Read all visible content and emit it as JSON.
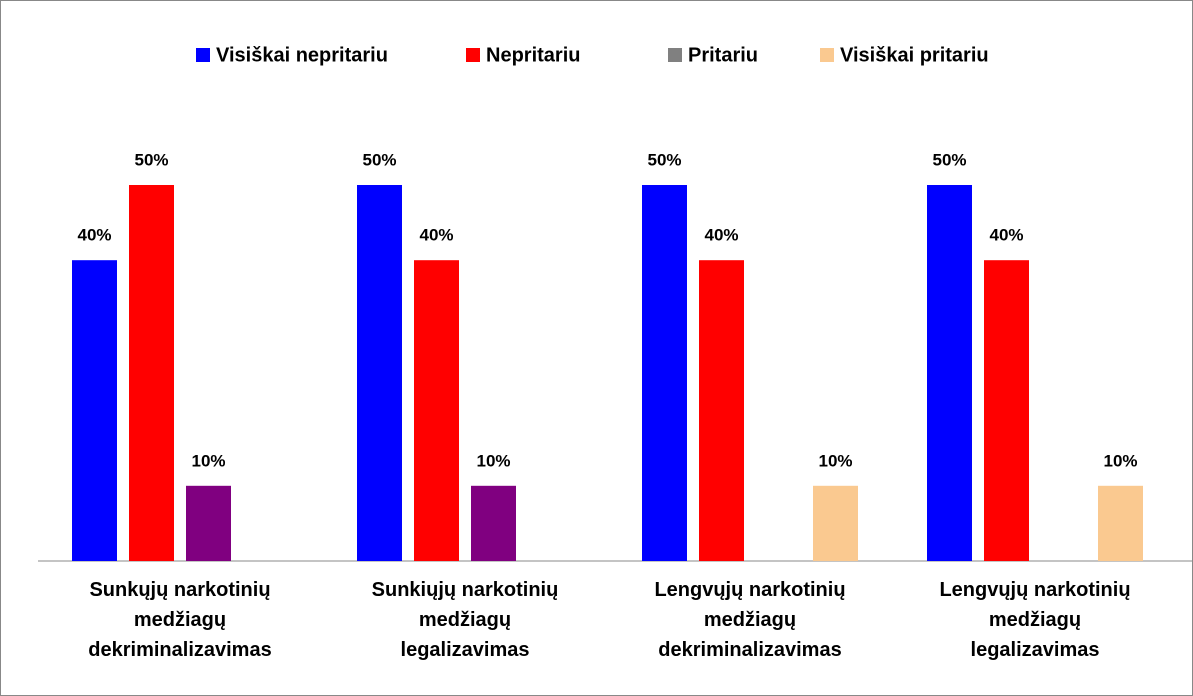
{
  "chart_data": {
    "type": "bar",
    "categories": [
      "Sunkųjų narkotinių\nmedžiagų\ndekriminalizavimas",
      "Sunkiųjų narkotinių\nmedžiagų\nlegalizavimas",
      "Lengvųjų narkotinių\nmedžiagų\ndekriminalizavimas",
      "Lengvųjų narkotinių\nmedžiagų\nlegalizavimas"
    ],
    "series": [
      {
        "name": "Visiškai nepritariu",
        "color": "#0000ff",
        "values": [
          40,
          50,
          50,
          50
        ],
        "value_labels": [
          "40%",
          "50%",
          "50%",
          "50%"
        ]
      },
      {
        "name": "Nepritariu",
        "color": "#ff0000",
        "values": [
          50,
          40,
          40,
          40
        ],
        "value_labels": [
          "50%",
          "40%",
          "40%",
          "40%"
        ]
      },
      {
        "name": "Pritariu",
        "color": "#800080",
        "legend_color": "#808080",
        "values": [
          10,
          10,
          null,
          null
        ],
        "value_labels": [
          "10%",
          "10%",
          null,
          null
        ]
      },
      {
        "name": "Visiškai pritariu",
        "color": "#fac990",
        "values": [
          null,
          null,
          10,
          10
        ],
        "value_labels": [
          null,
          null,
          "10%",
          "10%"
        ]
      }
    ],
    "ylim": [
      0,
      50
    ],
    "legend": "top"
  }
}
